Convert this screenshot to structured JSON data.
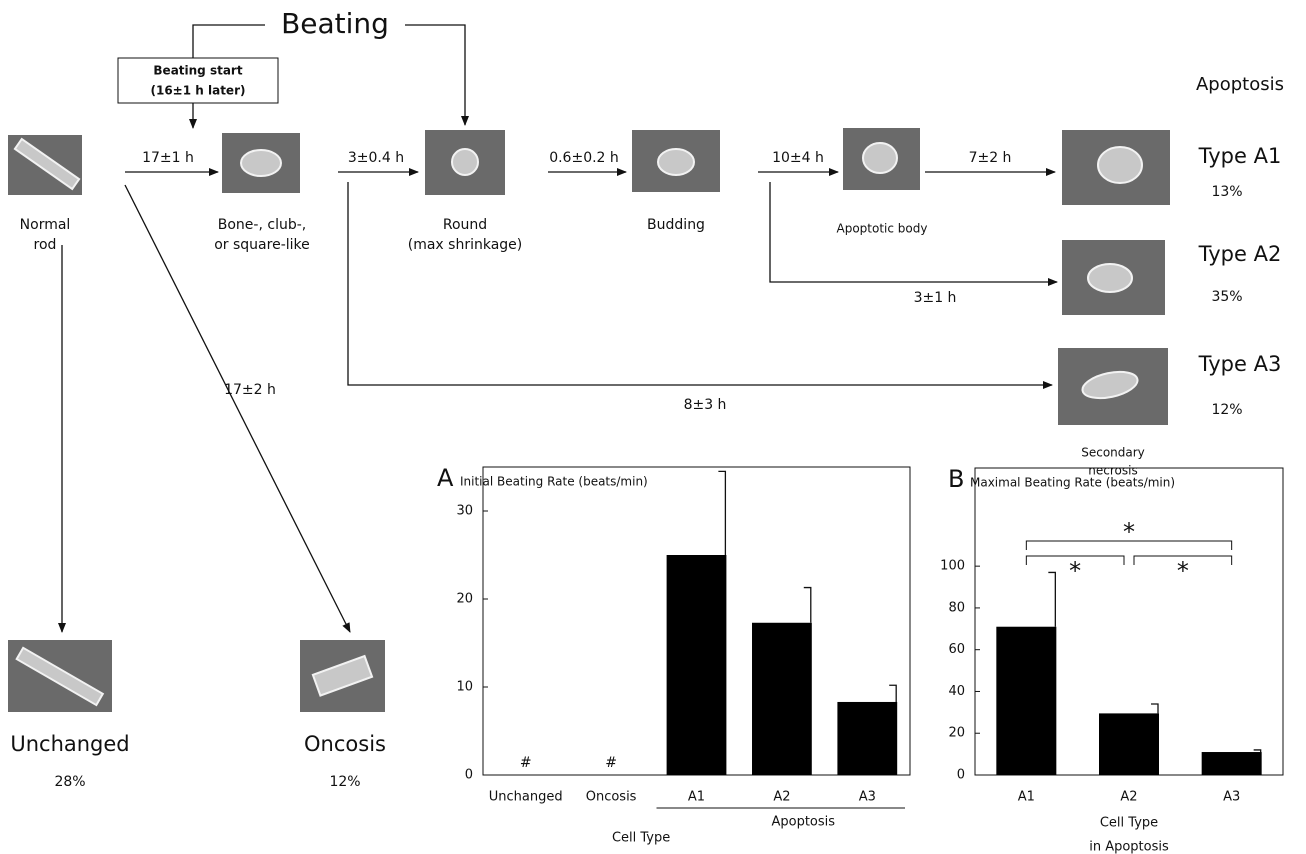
{
  "diagram": {
    "header": "Beating",
    "start_box": [
      "Beating start",
      "(16±1 h later)"
    ],
    "apoptosis_label": "Apoptosis",
    "nodes": [
      {
        "label": [
          "Normal",
          "rod"
        ]
      },
      {
        "label": [
          "Bone-, club-,",
          "or square-like"
        ]
      },
      {
        "label": [
          "Round",
          "(max shrinkage)"
        ]
      },
      {
        "label": [
          "Budding"
        ]
      },
      {
        "label": [
          "Apoptotic body"
        ]
      },
      {
        "label": [
          "Secondary",
          "necrosis"
        ]
      }
    ],
    "arrows": [
      "17±1 h",
      "3±0.4 h",
      "0.6±0.2 h",
      "10±4 h",
      "7±2 h",
      "3±1 h",
      "8±3 h",
      "17±2 h"
    ],
    "outcomes": [
      {
        "type": "Type A1",
        "percent": "13%"
      },
      {
        "type": "Type A2",
        "percent": "35%"
      },
      {
        "type": "Type A3",
        "percent": "12%"
      },
      {
        "type": "Unchanged",
        "percent": "28%"
      },
      {
        "type": "Oncosis",
        "percent": "12%"
      }
    ]
  },
  "chart_data": [
    {
      "type": "bar",
      "panel": "A",
      "title": "Initial Beating Rate (beats/min)",
      "categories": [
        "Unchanged",
        "Oncosis",
        "A1",
        "A2",
        "A3"
      ],
      "values": [
        null,
        null,
        25,
        17.3,
        8.3
      ],
      "errors": [
        null,
        null,
        9.5,
        4,
        1.9
      ],
      "value_labels": [
        "#",
        "#",
        null,
        null,
        null
      ],
      "group_label": "Apoptosis",
      "x_label": "Cell Type",
      "color": "#000000",
      "ylim": [
        0,
        35
      ],
      "yticks": [
        0,
        10,
        20,
        30
      ]
    },
    {
      "type": "bar",
      "panel": "B",
      "title": "Maximal Beating Rate (beats/min)",
      "categories": [
        "A1",
        "A2",
        "A3"
      ],
      "values": [
        71,
        29.5,
        11
      ],
      "errors": [
        26,
        4.5,
        1
      ],
      "significance_labels": [
        "*",
        "*",
        "*"
      ],
      "x_label": [
        "Cell Type",
        "in Apoptosis"
      ],
      "color": "#000000",
      "ylim": [
        0,
        147
      ],
      "yticks": [
        0,
        20,
        40,
        60,
        80,
        100
      ]
    }
  ]
}
